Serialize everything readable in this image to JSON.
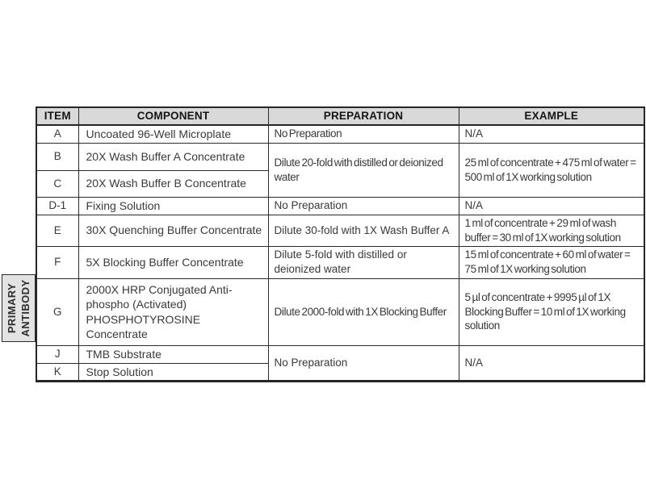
{
  "table": {
    "headers": {
      "item": "ITEM",
      "component": "COMPONENT",
      "preparation": "PREPARATION",
      "example": "EXAMPLE"
    },
    "side_label": {
      "line1": "PRIMARY",
      "line2": "ANTIBODY"
    },
    "rows": {
      "a": {
        "item": "A",
        "component": "Uncoated 96-Well Microplate",
        "preparation": "No Preparation",
        "example": "N/A"
      },
      "b": {
        "item": "B",
        "component": "20X Wash Buffer A Concentrate"
      },
      "c": {
        "item": "C",
        "component": "20X Wash Buffer B Concentrate"
      },
      "bc_merged": {
        "preparation": "Dilute 20-fold with distilled or deionized water",
        "example": "25 ml of concentrate + 475 ml of water = 500 ml of 1X working solution"
      },
      "d1": {
        "item": "D-1",
        "component": "Fixing Solution",
        "preparation": "No Preparation",
        "example": "N/A"
      },
      "e": {
        "item": "E",
        "component": "30X Quenching Buffer Concentrate",
        "preparation": "Dilute 30-fold with 1X Wash Buffer A",
        "example": "1 ml of concentrate + 29 ml of wash buffer = 30 ml of 1X working solution"
      },
      "f": {
        "item": "F",
        "component": "5X Blocking Buffer Concentrate",
        "preparation": "Dilute 5-fold with distilled or deionized water",
        "example": "15 ml of concentrate + 60 ml of water = 75 ml of 1X working solution"
      },
      "g": {
        "item": "G",
        "component": "2000X HRP Conjugated Anti-phospho (Activated) PHOSPHOTYROSINE Concentrate",
        "preparation": "Dilute 2000-fold with 1X Blocking Buffer",
        "example": "5 µl of concentrate + 9995 µl of 1X Blocking Buffer = 10 ml of 1X working solution"
      },
      "j": {
        "item": "J",
        "component": "TMB Substrate"
      },
      "k": {
        "item": "K",
        "component": "Stop Solution"
      },
      "jk_merged": {
        "preparation": "No Preparation",
        "example": "N/A"
      }
    }
  },
  "colors": {
    "header_bg": "#d9d9d9",
    "side_label_bg": "#e3e3e3",
    "border": "#2b2b2b",
    "text": "#3a3a3a"
  }
}
